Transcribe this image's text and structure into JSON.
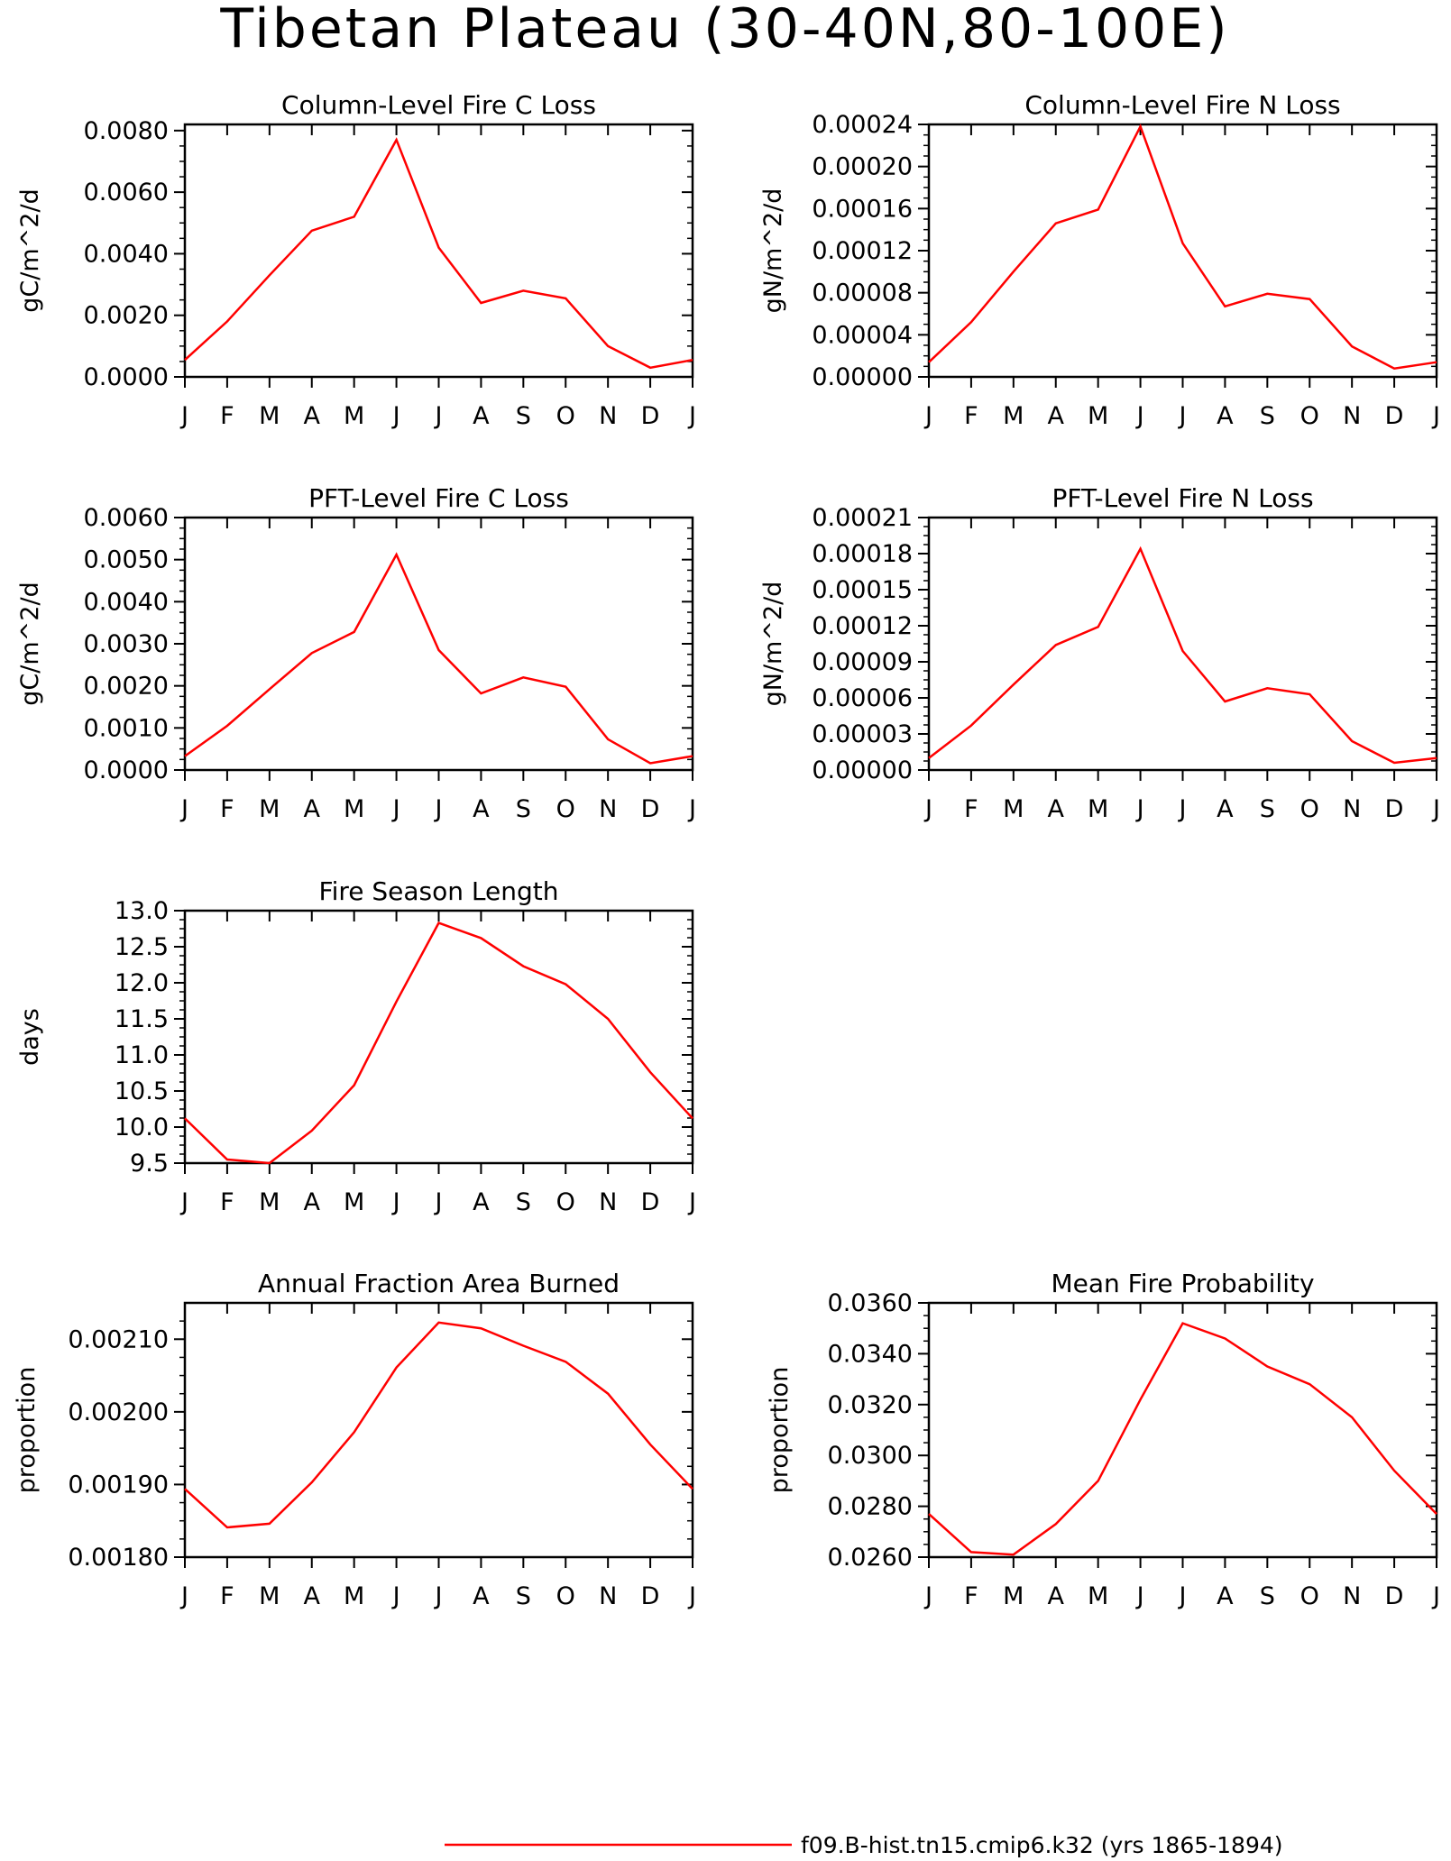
{
  "figure": {
    "title": "Tibetan Plateau (30-40N,80-100E)",
    "line_color": "#ff0000",
    "legend": {
      "label": "f09.B-hist.tn15.cmip6.k32 (yrs 1865-1894)",
      "placement": "bottom-center"
    }
  },
  "chart_data": [
    {
      "type": "line",
      "title": "Column-Level Fire C Loss",
      "xlabel": "",
      "ylabel": "gC/m^2/d",
      "categories": [
        "J",
        "F",
        "M",
        "A",
        "M",
        "J",
        "J",
        "A",
        "S",
        "O",
        "N",
        "D",
        "J"
      ],
      "yticks": [
        "0.0000",
        "0.0020",
        "0.0040",
        "0.0060",
        "0.0080"
      ],
      "ylim": [
        0,
        0.0082
      ],
      "grid": false,
      "values": [
        0.00055,
        0.0018,
        0.0033,
        0.00475,
        0.0052,
        0.0077,
        0.0042,
        0.0024,
        0.0028,
        0.00255,
        0.001,
        0.0003,
        0.00055
      ]
    },
    {
      "type": "line",
      "title": "Column-Level Fire N Loss",
      "xlabel": "",
      "ylabel": "gN/m^2/d",
      "categories": [
        "J",
        "F",
        "M",
        "A",
        "M",
        "J",
        "J",
        "A",
        "S",
        "O",
        "N",
        "D",
        "J"
      ],
      "yticks": [
        "0.00000",
        "0.00004",
        "0.00008",
        "0.00012",
        "0.00016",
        "0.00020",
        "0.00024"
      ],
      "ylim": [
        0,
        0.00024
      ],
      "grid": false,
      "values": [
        1.4e-05,
        5.2e-05,
        0.0001,
        0.000146,
        0.000159,
        0.000238,
        0.000127,
        6.7e-05,
        7.9e-05,
        7.4e-05,
        2.9e-05,
        8e-06,
        1.4e-05
      ]
    },
    {
      "type": "line",
      "title": "PFT-Level Fire C Loss",
      "xlabel": "",
      "ylabel": "gC/m^2/d",
      "categories": [
        "J",
        "F",
        "M",
        "A",
        "M",
        "J",
        "J",
        "A",
        "S",
        "O",
        "N",
        "D",
        "J"
      ],
      "yticks": [
        "0.0000",
        "0.0010",
        "0.0020",
        "0.0030",
        "0.0040",
        "0.0050",
        "0.0060"
      ],
      "ylim": [
        0,
        0.006
      ],
      "grid": false,
      "values": [
        0.00033,
        0.00105,
        0.00192,
        0.00278,
        0.00328,
        0.00512,
        0.00285,
        0.00182,
        0.0022,
        0.00198,
        0.00073,
        0.00016,
        0.00033
      ]
    },
    {
      "type": "line",
      "title": "PFT-Level Fire N Loss",
      "xlabel": "",
      "ylabel": "gN/m^2/d",
      "categories": [
        "J",
        "F",
        "M",
        "A",
        "M",
        "J",
        "J",
        "A",
        "S",
        "O",
        "N",
        "D",
        "J"
      ],
      "yticks": [
        "0.00000",
        "0.00003",
        "0.00006",
        "0.00009",
        "0.00012",
        "0.00015",
        "0.00018",
        "0.00021"
      ],
      "ylim": [
        0,
        0.00021
      ],
      "grid": false,
      "values": [
        1e-05,
        3.7e-05,
        7.1e-05,
        0.000104,
        0.000119,
        0.000184,
        9.9e-05,
        5.7e-05,
        6.8e-05,
        6.3e-05,
        2.4e-05,
        6e-06,
        1e-05
      ]
    },
    {
      "type": "line",
      "title": "Fire Season Length",
      "xlabel": "",
      "ylabel": "days",
      "categories": [
        "J",
        "F",
        "M",
        "A",
        "M",
        "J",
        "J",
        "A",
        "S",
        "O",
        "N",
        "D",
        "J"
      ],
      "yticks": [
        "9.5",
        "10.0",
        "10.5",
        "11.0",
        "11.5",
        "12.0",
        "12.5",
        "13.0"
      ],
      "ylim": [
        9.5,
        13.0
      ],
      "grid": false,
      "values": [
        10.12,
        9.55,
        9.5,
        9.95,
        10.58,
        11.74,
        12.83,
        12.62,
        12.23,
        11.98,
        11.5,
        10.76,
        10.12
      ]
    },
    {
      "type": "line",
      "title": "Annual Fraction Area Burned",
      "xlabel": "",
      "ylabel": "proportion",
      "categories": [
        "J",
        "F",
        "M",
        "A",
        "M",
        "J",
        "J",
        "A",
        "S",
        "O",
        "N",
        "D",
        "J"
      ],
      "yticks": [
        "0.00180",
        "0.00190",
        "0.00200",
        "0.00210"
      ],
      "ylim": [
        0.0018,
        0.00215
      ],
      "grid": false,
      "values": [
        0.001894,
        0.001841,
        0.001846,
        0.001903,
        0.001972,
        0.002061,
        0.002123,
        0.002115,
        0.002091,
        0.002069,
        0.002025,
        0.001955,
        0.001894
      ]
    },
    {
      "type": "line",
      "title": "Mean Fire Probability",
      "xlabel": "",
      "ylabel": "proportion",
      "categories": [
        "J",
        "F",
        "M",
        "A",
        "M",
        "J",
        "J",
        "A",
        "S",
        "O",
        "N",
        "D",
        "J"
      ],
      "yticks": [
        "0.0260",
        "0.0280",
        "0.0300",
        "0.0320",
        "0.0340",
        "0.0360"
      ],
      "ylim": [
        0.026,
        0.036
      ],
      "grid": false,
      "values": [
        0.0277,
        0.0262,
        0.0261,
        0.0273,
        0.029,
        0.0322,
        0.0352,
        0.0346,
        0.0335,
        0.0328,
        0.0315,
        0.0294,
        0.0277
      ]
    }
  ]
}
